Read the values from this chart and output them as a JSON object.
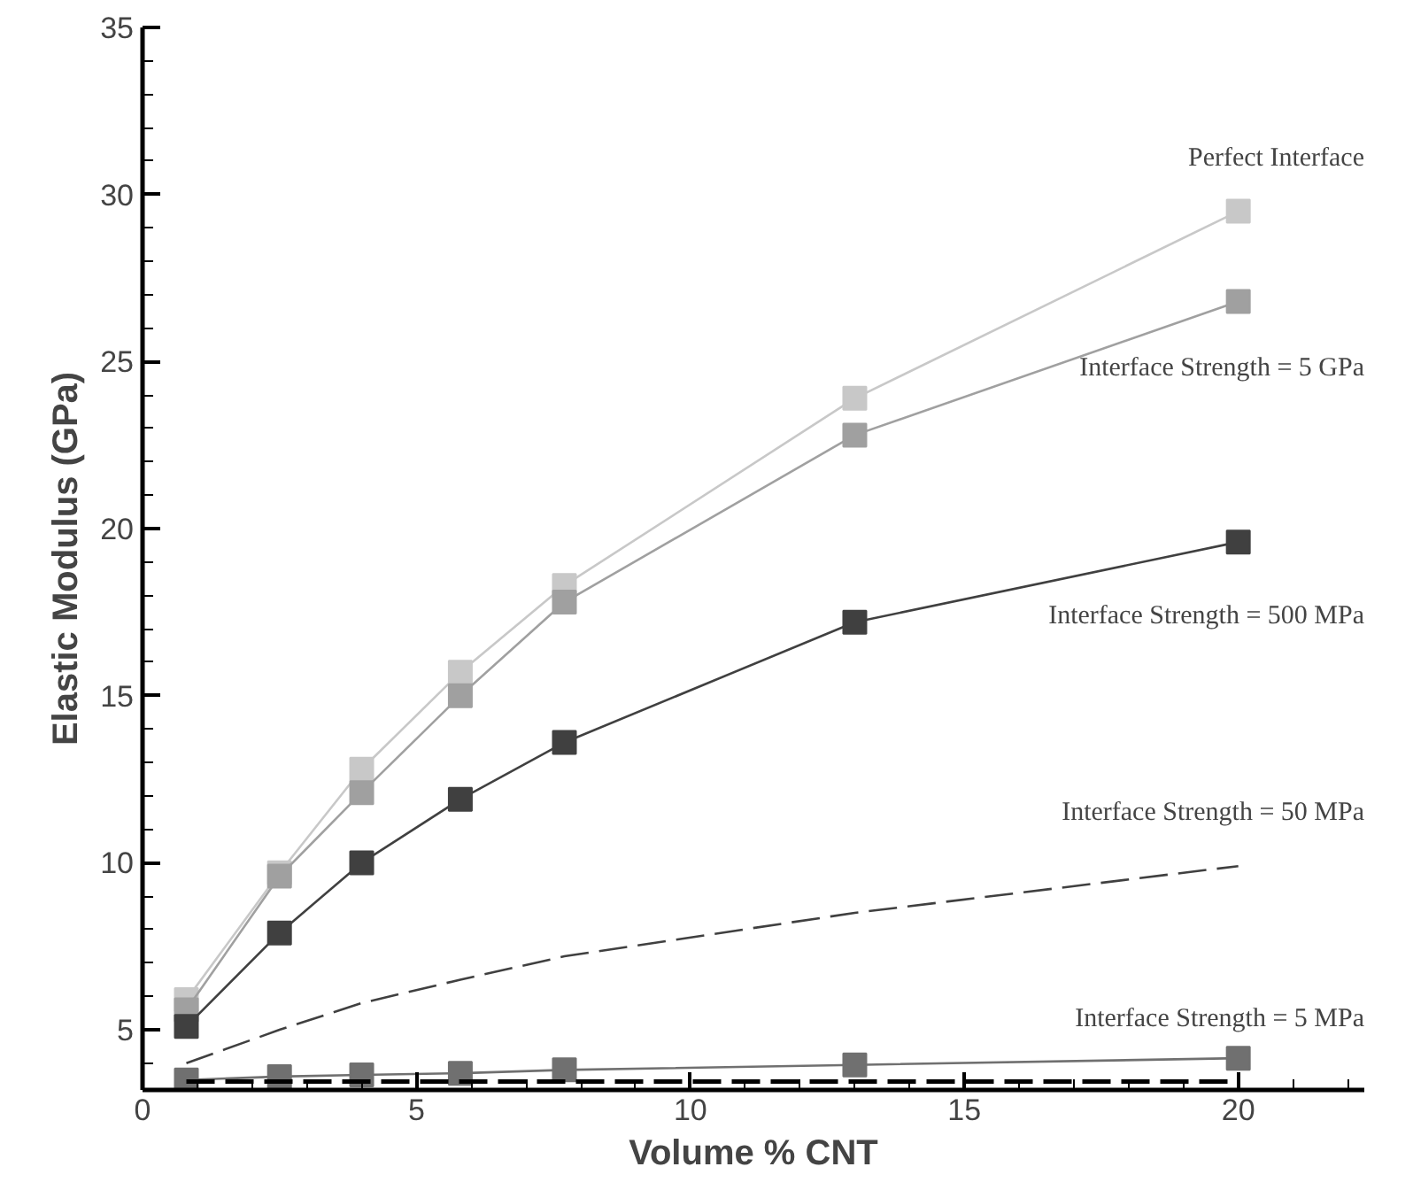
{
  "chart_data": {
    "type": "line",
    "xlabel": "Volume % CNT",
    "ylabel": "Elastic Modulus (GPa)",
    "x": [
      0.8,
      2.5,
      4,
      5.8,
      7.7,
      13,
      20
    ],
    "xlim": [
      0,
      22.3
    ],
    "xticks": [
      0,
      5,
      10,
      15,
      20
    ],
    "ylim": [
      3.2,
      35
    ],
    "yticks": [
      5,
      10,
      15,
      20,
      25,
      30,
      35
    ],
    "grid": false,
    "series": [
      {
        "name": "Perfect Interface",
        "color": "#c8c8c8",
        "marker": "square",
        "line_style": "solid",
        "values": [
          5.9,
          9.7,
          12.8,
          15.7,
          18.3,
          23.9,
          29.5
        ]
      },
      {
        "name": "Interface Strength = 5 GPa",
        "color": "#a0a0a0",
        "marker": "square",
        "line_style": "solid",
        "values": [
          5.6,
          9.6,
          12.1,
          15.0,
          17.8,
          22.8,
          26.8
        ]
      },
      {
        "name": "Interface Strength = 500 MPa",
        "color": "#404040",
        "marker": "square",
        "line_style": "solid",
        "values": [
          5.1,
          7.9,
          10.0,
          11.9,
          13.6,
          17.2,
          19.6
        ]
      },
      {
        "name": "Interface Strength = 50 MPa",
        "color": "#404040",
        "marker": "none",
        "line_style": "dashed",
        "values": [
          4.0,
          5.0,
          5.8,
          6.5,
          7.2,
          8.5,
          9.9
        ]
      },
      {
        "name": "Interface Strength = 5 MPa",
        "color": "#707070",
        "marker": "square",
        "line_style": "solid",
        "values": [
          3.5,
          3.6,
          3.65,
          3.7,
          3.8,
          3.95,
          4.15
        ]
      },
      {
        "color": "#000000",
        "marker": "none",
        "line_style": "dashed",
        "values": [
          3.45,
          3.45,
          3.45,
          3.45,
          3.45,
          3.45,
          3.45
        ]
      }
    ]
  }
}
